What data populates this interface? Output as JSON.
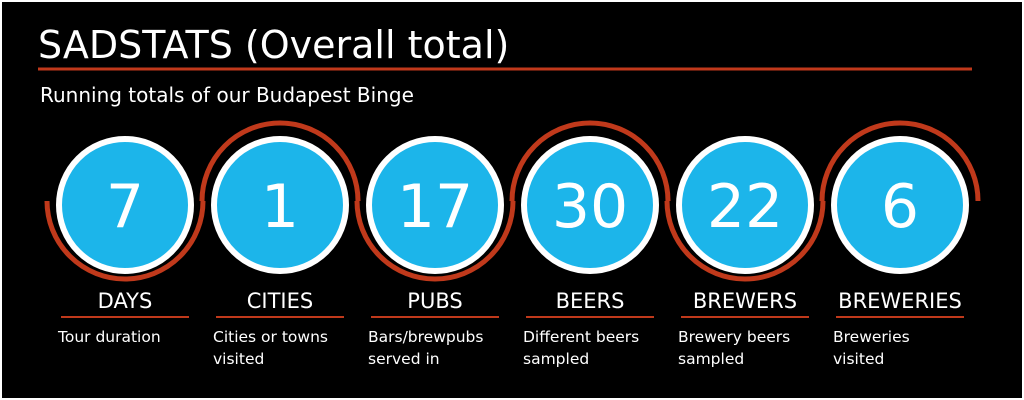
{
  "header": {
    "title": "SADSTATS (Overall total)",
    "subtitle": "Running totals of our Budapest Binge"
  },
  "stats": [
    {
      "value": 7,
      "label": "DAYS",
      "description": [
        "Tour duration"
      ]
    },
    {
      "value": 1,
      "label": "CITIES",
      "description": [
        "Cities or towns",
        "visited"
      ]
    },
    {
      "value": 17,
      "label": "PUBS",
      "description": [
        "Bars/brewpubs",
        "served in"
      ]
    },
    {
      "value": 30,
      "label": "BEERS",
      "description": [
        "Different beers",
        "sampled"
      ]
    },
    {
      "value": 22,
      "label": "BREWERS",
      "description": [
        "Brewery beers",
        "sampled"
      ]
    },
    {
      "value": 6,
      "label": "BREWERIES",
      "description": [
        "Breweries",
        "visited"
      ]
    }
  ]
}
